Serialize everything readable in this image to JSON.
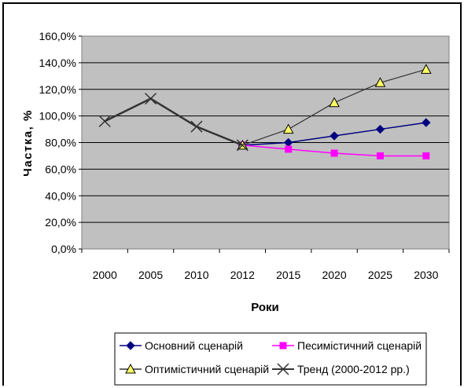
{
  "chart_data": {
    "type": "line",
    "categories": [
      "2000",
      "2005",
      "2010",
      "2012",
      "2015",
      "2020",
      "2025",
      "2030"
    ],
    "xlabel": "Роки",
    "ylabel": "Частка, %",
    "ylim": [
      0,
      160
    ],
    "yticks": [
      "0,0%",
      "20,0%",
      "40,0%",
      "60,0%",
      "80,0%",
      "100,0%",
      "120,0%",
      "140,0%",
      "160,0%"
    ],
    "grid": true,
    "legend_position": "bottom",
    "plot_background": "#c0c0c0",
    "series": [
      {
        "name": "Основний сценарій",
        "color": "#000080",
        "marker": "diamond",
        "values": [
          null,
          null,
          null,
          78,
          80,
          85,
          90,
          95
        ]
      },
      {
        "name": "Песимістичний сценарій",
        "color": "#ff00ff",
        "marker": "square",
        "values": [
          null,
          null,
          null,
          78,
          75,
          72,
          70,
          70
        ]
      },
      {
        "name": "Оптимістичний сценарій",
        "color": "#333333",
        "marker": "triangle",
        "values": [
          null,
          null,
          null,
          78,
          90,
          110,
          125,
          135
        ]
      },
      {
        "name": "Тренд (2000-2012 рр.)",
        "color": "#333333",
        "marker": "x",
        "values": [
          96,
          113,
          92,
          78,
          null,
          null,
          null,
          null
        ]
      }
    ]
  }
}
